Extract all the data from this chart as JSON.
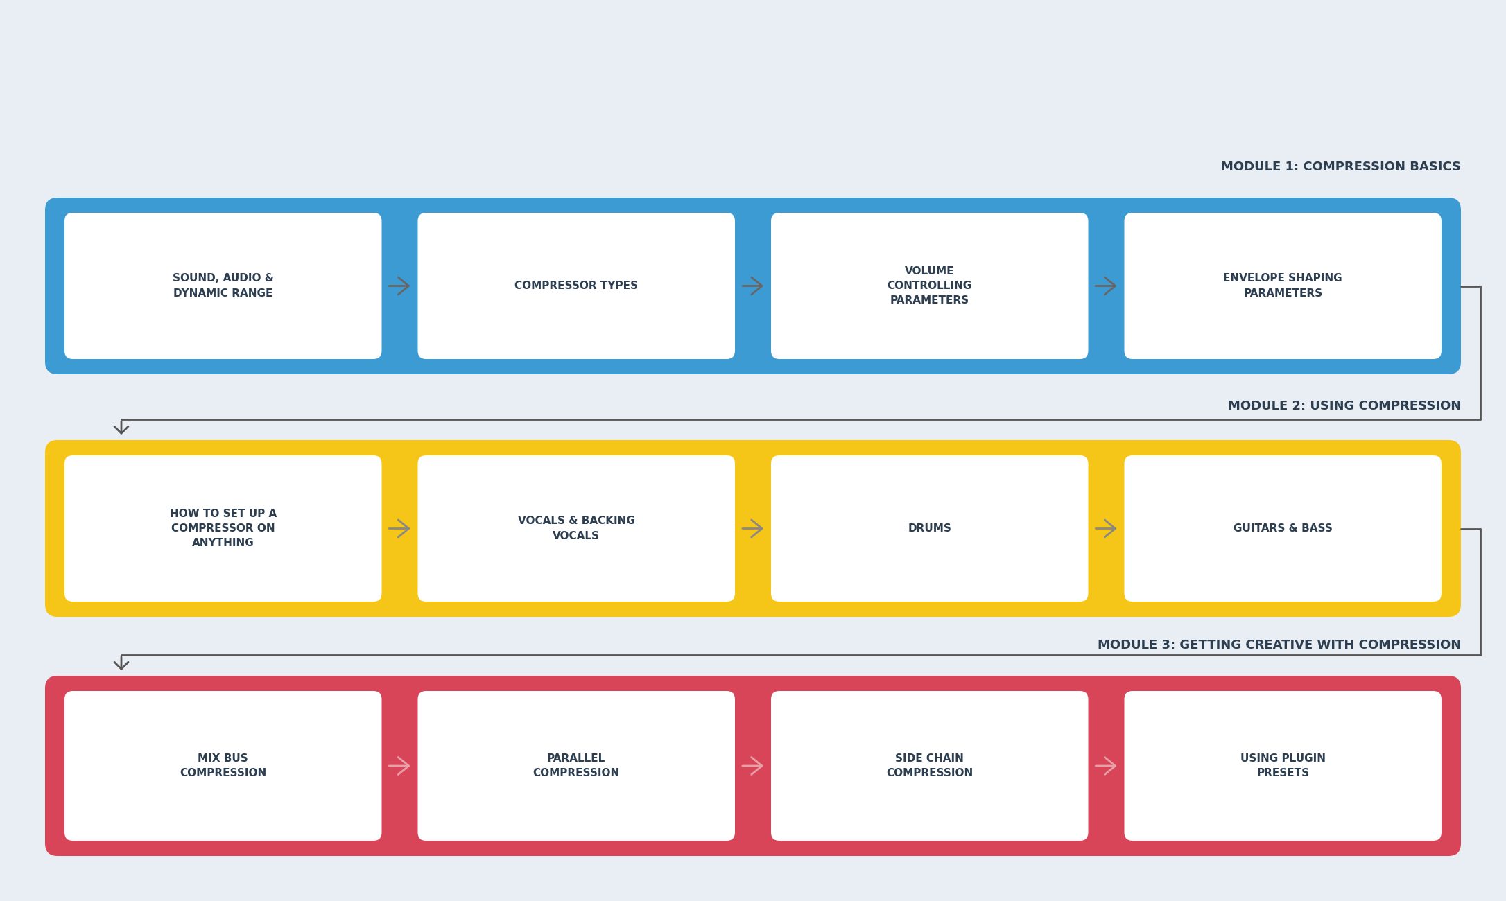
{
  "bg_color": "#e8eef3",
  "title_color": "#2c3e50",
  "modules": [
    {
      "title": "MODULE 1: COMPRESSION BASICS",
      "bg_color": "#3d9bd4",
      "arrow_color": "#666666",
      "items": [
        "SOUND, AUDIO &\nDYNAMIC RANGE",
        "COMPRESSOR TYPES",
        "VOLUME\nCONTROLLING\nPARAMETERS",
        "ENVELOPE SHAPING\nPARAMETERS"
      ]
    },
    {
      "title": "MODULE 2: USING COMPRESSION",
      "bg_color": "#f5c518",
      "arrow_color": "#888888",
      "items": [
        "HOW TO SET UP A\nCOMPRESSOR ON\nANYTHING",
        "VOCALS & BACKING\nVOCALS",
        "DRUMS",
        "GUITARS & BASS"
      ]
    },
    {
      "title": "MODULE 3: GETTING CREATIVE WITH COMPRESSION",
      "bg_color": "#d94558",
      "arrow_color": "#e8a0a8",
      "items": [
        "MIX BUS\nCOMPRESSION",
        "PARALLEL\nCOMPRESSION",
        "SIDE CHAIN\nCOMPRESSION",
        "USING PLUGIN\nPRESETS"
      ]
    }
  ],
  "item_text_color": "#2c3e50",
  "connector_color": "#555555"
}
